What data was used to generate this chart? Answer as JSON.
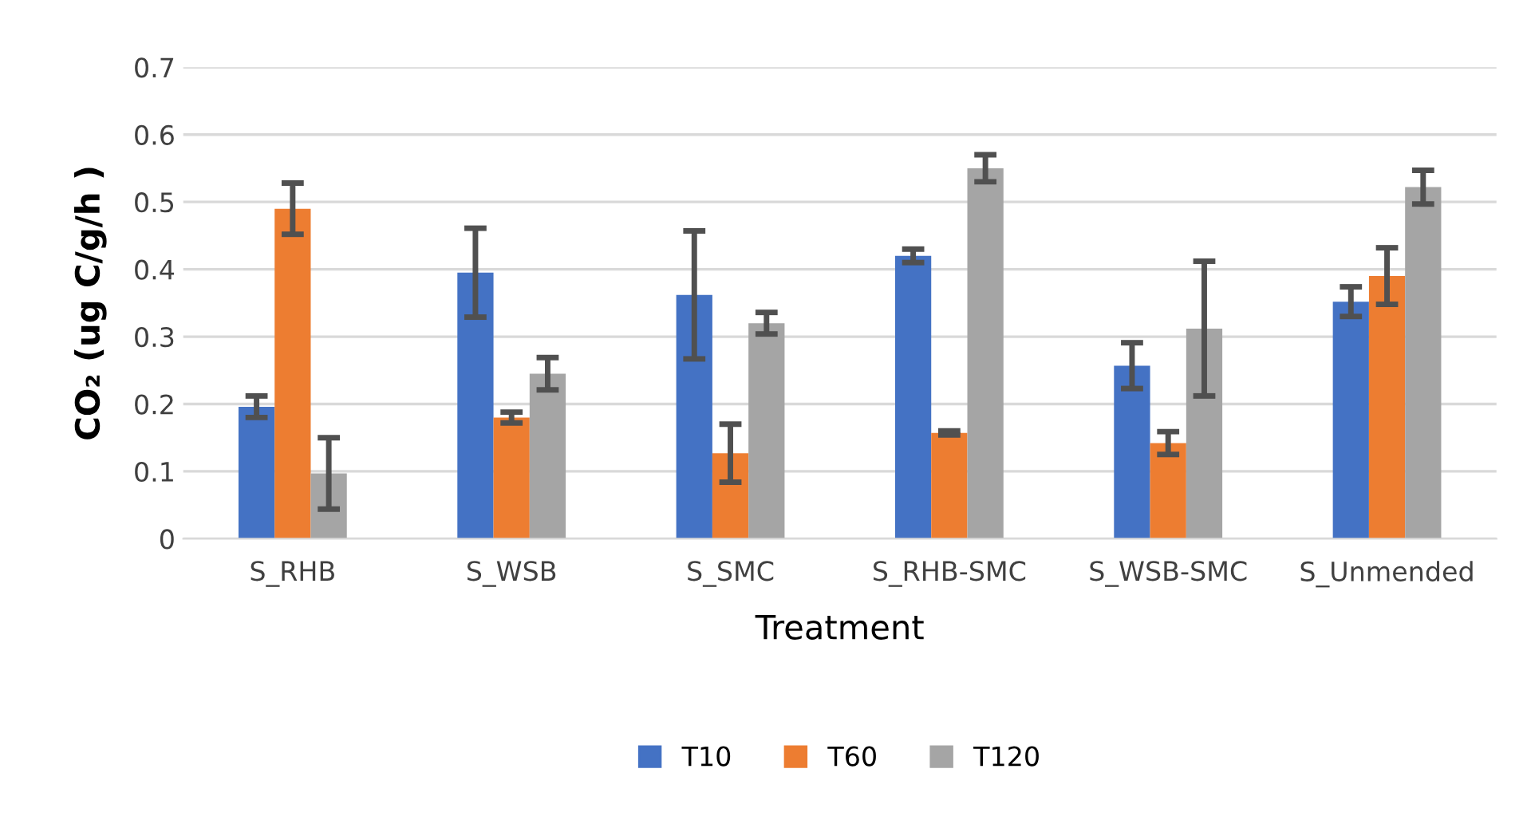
{
  "chart_data": {
    "type": "bar",
    "xlabel": "Treatment",
    "ylabel": "CO₂ (ug C/g/h )",
    "categories": [
      "S_RHB",
      "S_WSB",
      "S_SMC",
      "S_RHB-SMC",
      "S_WSB-SMC",
      "S_Unmended"
    ],
    "series": [
      {
        "name": "T10",
        "color": "#4472c4",
        "values": [
          0.196,
          0.395,
          0.362,
          0.42,
          0.257,
          0.352
        ],
        "errors": [
          0.016,
          0.066,
          0.095,
          0.01,
          0.034,
          0.022
        ]
      },
      {
        "name": "T60",
        "color": "#ed7d31",
        "values": [
          0.49,
          0.18,
          0.127,
          0.157,
          0.142,
          0.39
        ],
        "errors": [
          0.038,
          0.008,
          0.043,
          0.003,
          0.017,
          0.042
        ]
      },
      {
        "name": "T120",
        "color": "#a5a5a5",
        "values": [
          0.097,
          0.245,
          0.32,
          0.55,
          0.312,
          0.522
        ],
        "errors": [
          0.053,
          0.024,
          0.016,
          0.02,
          0.1,
          0.025
        ]
      }
    ],
    "ylim": [
      0,
      0.7
    ],
    "yticks": [
      0,
      0.1,
      0.2,
      0.3,
      0.4,
      0.5,
      0.6,
      0.7
    ],
    "grid": "y",
    "legend": "bottom"
  }
}
